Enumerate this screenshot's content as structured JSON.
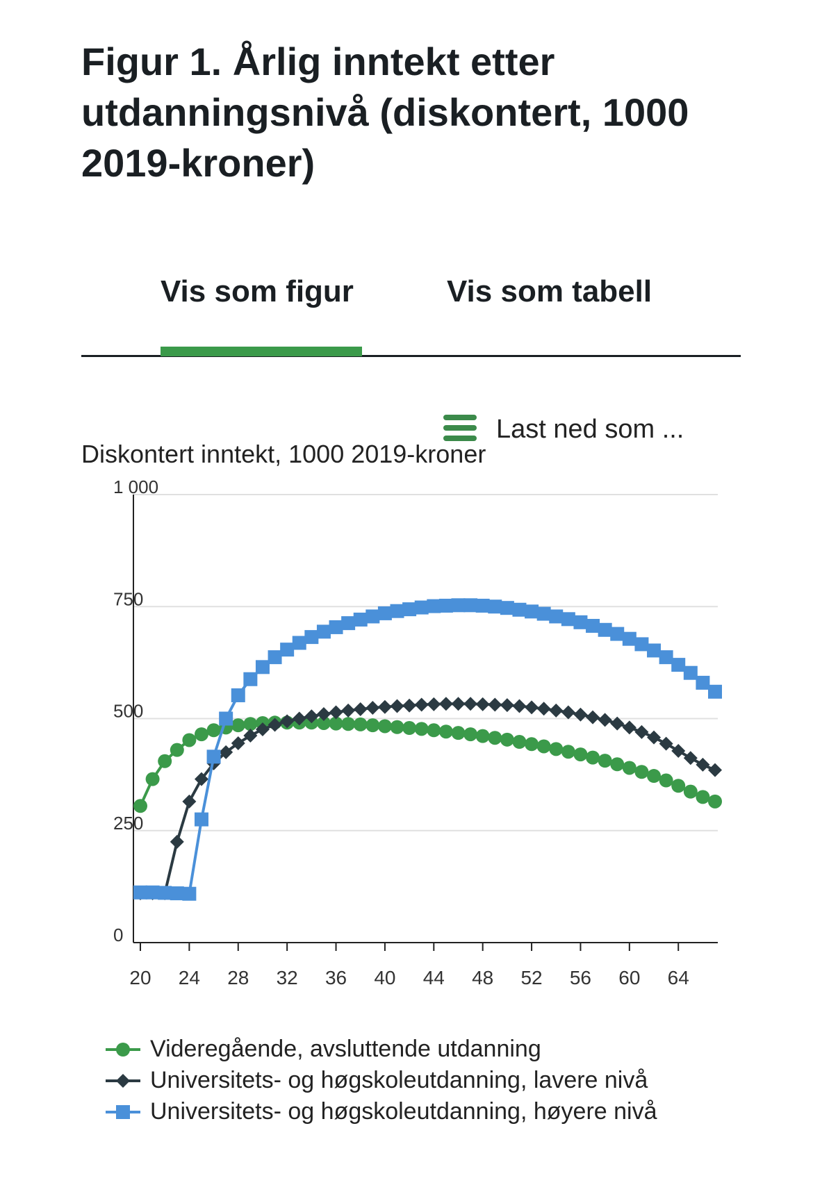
{
  "title": "Figur 1. Årlig inntekt etter utdanningsnivå (diskontert, 1000 2019-kroner)",
  "tabs": {
    "figure": "Vis som figur",
    "table": "Vis som tabell"
  },
  "download": {
    "label": "Last ned som ...",
    "icon": "hamburger-menu-icon"
  },
  "colors": {
    "green": "#3b9a4a",
    "dark": "#2b3a42",
    "blue": "#4a90d9"
  },
  "chart_data": {
    "type": "line",
    "ylabel": "Diskontert inntekt, 1000 2019-kroner",
    "y_ticks": [
      "1 000",
      "750",
      "500",
      "250",
      "0"
    ],
    "x_ticks": [
      "20",
      "24",
      "28",
      "32",
      "36",
      "40",
      "44",
      "48",
      "52",
      "56",
      "60",
      "64"
    ],
    "ylim": [
      0,
      1000
    ],
    "xlim": [
      20,
      67
    ],
    "grid": "horizontal",
    "legend_position": "bottom",
    "x": [
      20,
      21,
      22,
      23,
      24,
      25,
      26,
      27,
      28,
      29,
      30,
      31,
      32,
      33,
      34,
      35,
      36,
      37,
      38,
      39,
      40,
      41,
      42,
      43,
      44,
      45,
      46,
      47,
      48,
      49,
      50,
      51,
      52,
      53,
      54,
      55,
      56,
      57,
      58,
      59,
      60,
      61,
      62,
      63,
      64,
      65,
      66,
      67
    ],
    "series": [
      {
        "name": "Videregående, avsluttende utdanning",
        "marker": "circle",
        "color": "#3b9a4a",
        "values": [
          305,
          365,
          405,
          430,
          452,
          465,
          474,
          480,
          485,
          488,
          490,
          491,
          491,
          491,
          491,
          490,
          489,
          488,
          487,
          485,
          483,
          481,
          479,
          477,
          474,
          471,
          468,
          465,
          461,
          457,
          453,
          448,
          443,
          438,
          432,
          426,
          420,
          413,
          406,
          398,
          390,
          381,
          372,
          362,
          350,
          337,
          325,
          315
        ]
      },
      {
        "name": "Universitets- og høgskoleutdanning, lavere nivå",
        "marker": "diamond",
        "color": "#2b3a42",
        "values": [
          110,
          110,
          110,
          225,
          315,
          365,
          400,
          425,
          445,
          462,
          476,
          486,
          494,
          500,
          505,
          510,
          514,
          518,
          521,
          524,
          526,
          528,
          529,
          531,
          532,
          533,
          533,
          533,
          532,
          531,
          530,
          528,
          525,
          522,
          518,
          514,
          509,
          503,
          497,
          489,
          480,
          470,
          458,
          444,
          428,
          412,
          397,
          385
        ]
      },
      {
        "name": "Universitets- og høgskoleutdanning, høyere nivå",
        "marker": "square",
        "color": "#4a90d9",
        "values": [
          112,
          112,
          111,
          110,
          109,
          275,
          415,
          500,
          552,
          588,
          615,
          637,
          654,
          669,
          682,
          694,
          704,
          713,
          721,
          728,
          735,
          740,
          744,
          748,
          751,
          752,
          753,
          753,
          752,
          750,
          747,
          743,
          739,
          734,
          728,
          722,
          715,
          707,
          698,
          689,
          678,
          666,
          652,
          637,
          620,
          602,
          580,
          560
        ]
      }
    ]
  }
}
